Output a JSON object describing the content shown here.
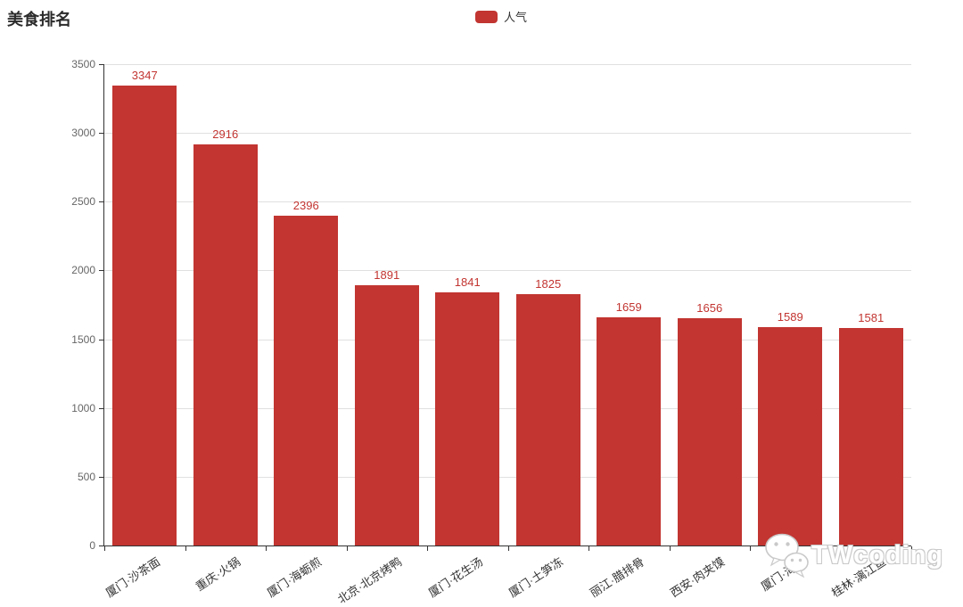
{
  "header": {
    "title": "美食排名",
    "legend": {
      "label": "人气",
      "swatch_color": "#c23531"
    }
  },
  "watermark": {
    "text": "TWcoding",
    "icon": "wechat-icon"
  },
  "chart_data": {
    "type": "bar",
    "title": "美食排名",
    "legend": [
      "人气"
    ],
    "legend_position": "top-center",
    "categories": [
      "厦门·沙茶面",
      "重庆·火锅",
      "厦门·海蛎煎",
      "北京·北京烤鸭",
      "厦门·花生汤",
      "厦门·土笋冻",
      "丽江·腊排骨",
      "西安·肉夹馍",
      "厦门·海鲜",
      "桂林·漓江鱼"
    ],
    "series": [
      {
        "name": "人气",
        "values": [
          3347,
          2916,
          2396,
          1891,
          1841,
          1825,
          1659,
          1656,
          1589,
          1581
        ]
      }
    ],
    "value_labels_shown": true,
    "xlabel": "",
    "ylabel": "",
    "ylim": [
      0,
      3500
    ],
    "y_ticks": [
      0,
      500,
      1000,
      1500,
      2000,
      2500,
      3000,
      3500
    ],
    "grid": true,
    "x_label_rotate_deg": 33,
    "colors": {
      "bar": "#c23531",
      "value_label": "#c23531",
      "axis_line": "#333333",
      "y_tick_label": "#666666",
      "x_tick_label": "#333333",
      "gridline": "#e0e0e0"
    }
  }
}
